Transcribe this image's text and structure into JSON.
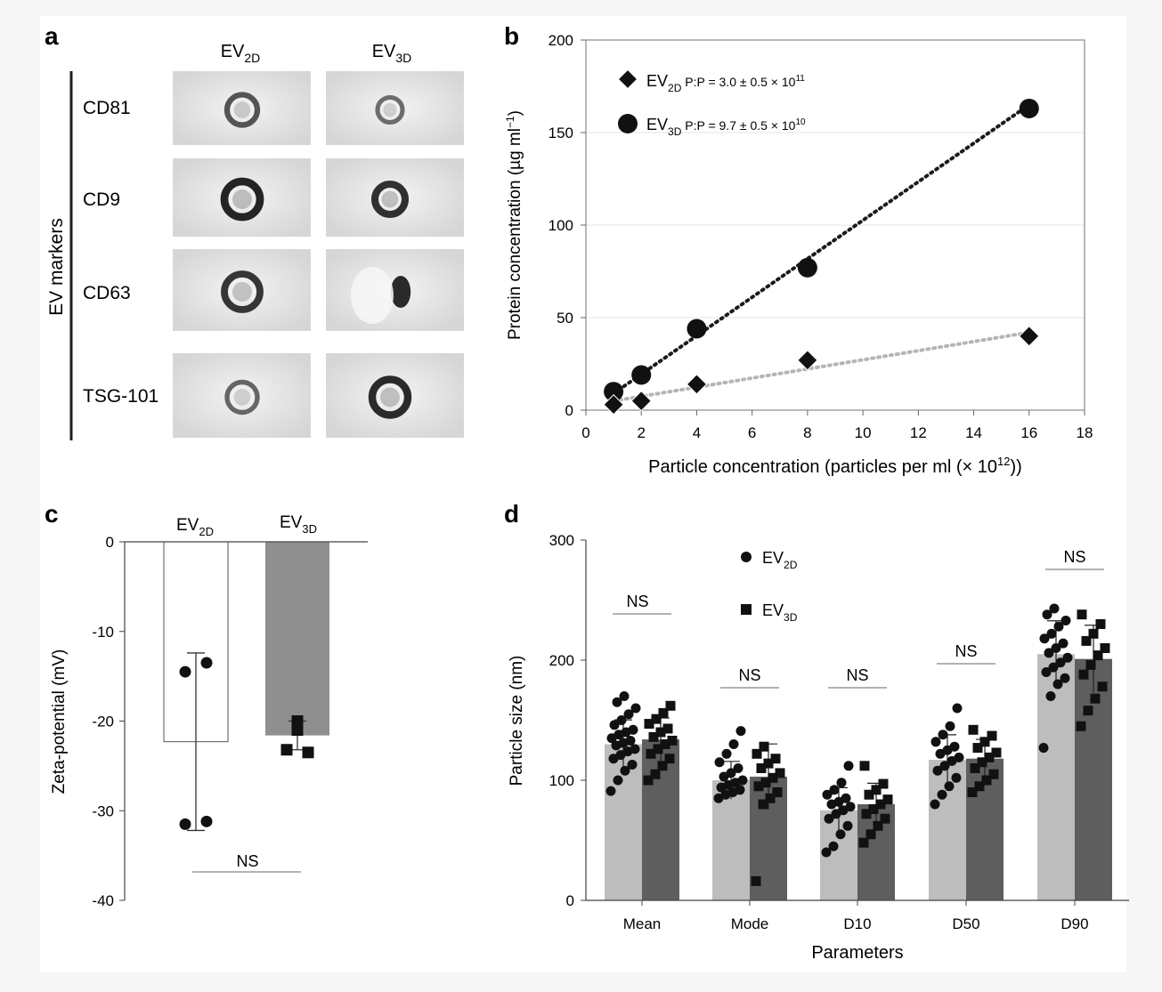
{
  "panels": {
    "a": {
      "letter": "a",
      "columns": [
        {
          "base": "EV",
          "sub": "2D"
        },
        {
          "base": "EV",
          "sub": "3D"
        }
      ],
      "row_group_label": "EV markers",
      "rows": [
        "CD81",
        "CD9",
        "CD63",
        "TSG-101"
      ],
      "blots": [
        [
          {
            "ring_intensity": 0.55,
            "ring_size": "medium"
          },
          {
            "ring_intensity": 0.35,
            "ring_size": "small"
          }
        ],
        [
          {
            "ring_intensity": 0.95,
            "ring_size": "large"
          },
          {
            "ring_intensity": 0.85,
            "ring_size": "medium"
          }
        ],
        [
          {
            "ring_intensity": 0.8,
            "ring_size": "large"
          },
          {
            "ring_intensity": 0.9,
            "ring_size": "half"
          }
        ],
        [
          {
            "ring_intensity": 0.4,
            "ring_size": "medium"
          },
          {
            "ring_intensity": 0.9,
            "ring_size": "large"
          }
        ]
      ]
    },
    "b": {
      "letter": "b"
    },
    "c": {
      "letter": "c"
    },
    "d": {
      "letter": "d"
    }
  },
  "colors": {
    "ev2d_bar": "#bdbdbd",
    "ev3d_bar": "#5e5e5e",
    "ev3d_bar_c": "#8f8f8f",
    "points": "#111111",
    "fit_3d": "#1a1a1a",
    "fit_2d": "#b5b5b5",
    "axis": "#444444"
  },
  "chart_data": [
    {
      "panel": "b",
      "type": "scatter",
      "xlabel": "Particle concentration (particles per ml (× 10",
      "xlabel_sup": "12",
      "xlabel_end": "))",
      "ylabel": "Protein concentration (µg ml",
      "ylabel_sup": "−1",
      "ylabel_end": ")",
      "xlim": [
        0,
        18
      ],
      "ylim": [
        0,
        200
      ],
      "xticks": [
        0,
        2,
        4,
        6,
        8,
        10,
        12,
        14,
        16,
        18
      ],
      "yticks": [
        0,
        50,
        100,
        150,
        200
      ],
      "series": [
        {
          "legend_base": "EV",
          "legend_sub": "2D",
          "legend_text": " P:P = 3.0 ± 0.5 × 10",
          "legend_sup": "11",
          "marker": "diamond",
          "x": [
            1,
            2,
            4,
            8,
            16
          ],
          "y": [
            3,
            5,
            14,
            27,
            40
          ],
          "fit": [
            [
              1,
              5
            ],
            [
              16,
              42
            ]
          ]
        },
        {
          "legend_base": "EV",
          "legend_sub": "3D",
          "legend_text": " P:P = 9.7 ± 0.5 × 10",
          "legend_sup": "10",
          "marker": "circle",
          "x": [
            1,
            2,
            4,
            8,
            16
          ],
          "y": [
            10,
            19,
            44,
            77,
            163
          ],
          "fit": [
            [
              1,
              9
            ],
            [
              16,
              165
            ]
          ]
        }
      ]
    },
    {
      "panel": "c",
      "type": "bar",
      "ylabel": "Zeta-potential (mV)",
      "ylim": [
        -40,
        0
      ],
      "yticks": [
        0,
        -10,
        -20,
        -30,
        -40
      ],
      "categories": [
        {
          "base": "EV",
          "sub": "2D"
        },
        {
          "base": "EV",
          "sub": "3D"
        }
      ],
      "values": [
        -22.3,
        -21.6
      ],
      "sd": [
        9.9,
        1.6
      ],
      "points": [
        [
          -14.5,
          -13.5,
          -31.5,
          -31.2
        ],
        [
          -20.0,
          -21.0,
          -23.2,
          -23.5
        ]
      ],
      "significance": "NS"
    },
    {
      "panel": "d",
      "type": "bar",
      "xlabel": "Parameters",
      "ylabel": "Particle size (nm)",
      "ylim": [
        0,
        300
      ],
      "yticks": [
        0,
        100,
        200,
        300
      ],
      "categories": [
        "Mean",
        "Mode",
        "D10",
        "D50",
        "D90"
      ],
      "series": [
        {
          "base": "EV",
          "sub": "2D",
          "marker": "circle",
          "values": [
            130,
            100,
            75,
            117,
            205
          ],
          "points": [
            [
              91,
              100,
              108,
              113,
              118,
              121,
              124,
              126,
              129,
              131,
              133,
              135,
              138,
              140,
              142,
              146,
              150,
              155,
              160,
              165,
              170
            ],
            [
              85,
              88,
              90,
              92,
              94,
              96,
              98,
              100,
              103,
              106,
              110,
              115,
              122,
              130,
              141
            ],
            [
              40,
              45,
              55,
              62,
              68,
              72,
              75,
              78,
              80,
              82,
              85,
              88,
              92,
              98,
              112
            ],
            [
              80,
              88,
              95,
              102,
              108,
              112,
              116,
              119,
              122,
              125,
              128,
              132,
              138,
              145,
              160
            ],
            [
              127,
              170,
              180,
              185,
              190,
              194,
              198,
              202,
              206,
              210,
              214,
              218,
              222,
              228,
              233,
              238,
              243
            ]
          ]
        },
        {
          "base": "EV",
          "sub": "3D",
          "marker": "square",
          "values": [
            134,
            103,
            80,
            118,
            201
          ],
          "points": [
            [
              100,
              105,
              112,
              118,
              122,
              126,
              130,
              133,
              136,
              140,
              143,
              147,
              151,
              156,
              162
            ],
            [
              16,
              80,
              85,
              90,
              95,
              98,
              102,
              106,
              110,
              114,
              118,
              122,
              128
            ],
            [
              48,
              55,
              62,
              68,
              72,
              76,
              80,
              84,
              88,
              92,
              97,
              112
            ],
            [
              90,
              95,
              100,
              105,
              110,
              115,
              119,
              123,
              127,
              132,
              137,
              142
            ],
            [
              145,
              158,
              168,
              178,
              188,
              196,
              204,
              210,
              216,
              222,
              230,
              238
            ]
          ]
        }
      ],
      "significance": [
        "NS",
        "NS",
        "NS",
        "NS",
        "NS"
      ]
    }
  ]
}
